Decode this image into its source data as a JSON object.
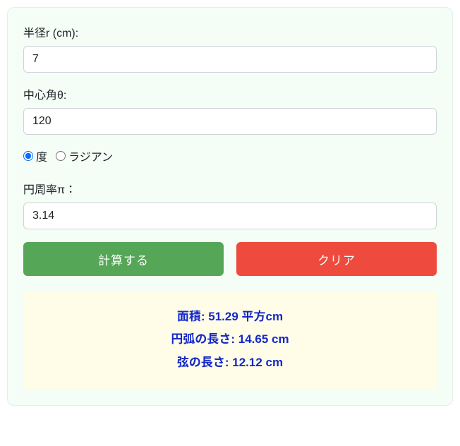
{
  "card": {
    "background_color": "#f4fdf6",
    "border_color": "#e5eee7"
  },
  "fields": {
    "radius": {
      "label": "半径r (cm):",
      "value": "7"
    },
    "angle": {
      "label": "中心角θ:",
      "value": "120"
    },
    "pi": {
      "label": "円周率π：",
      "value": "3.14"
    }
  },
  "units": {
    "degrees": "度",
    "radians": "ラジアン",
    "selected": "degrees"
  },
  "buttons": {
    "calculate": "計算する",
    "clear": "クリア"
  },
  "colors": {
    "calc_button": "#56a658",
    "clear_button": "#ee4b3e",
    "result_bg": "#fffde8",
    "result_text": "#1428c8"
  },
  "results": {
    "area": "面積: 51.29 平方cm",
    "arc": "円弧の長さ: 14.65 cm",
    "chord": "弦の長さ: 12.12 cm"
  }
}
